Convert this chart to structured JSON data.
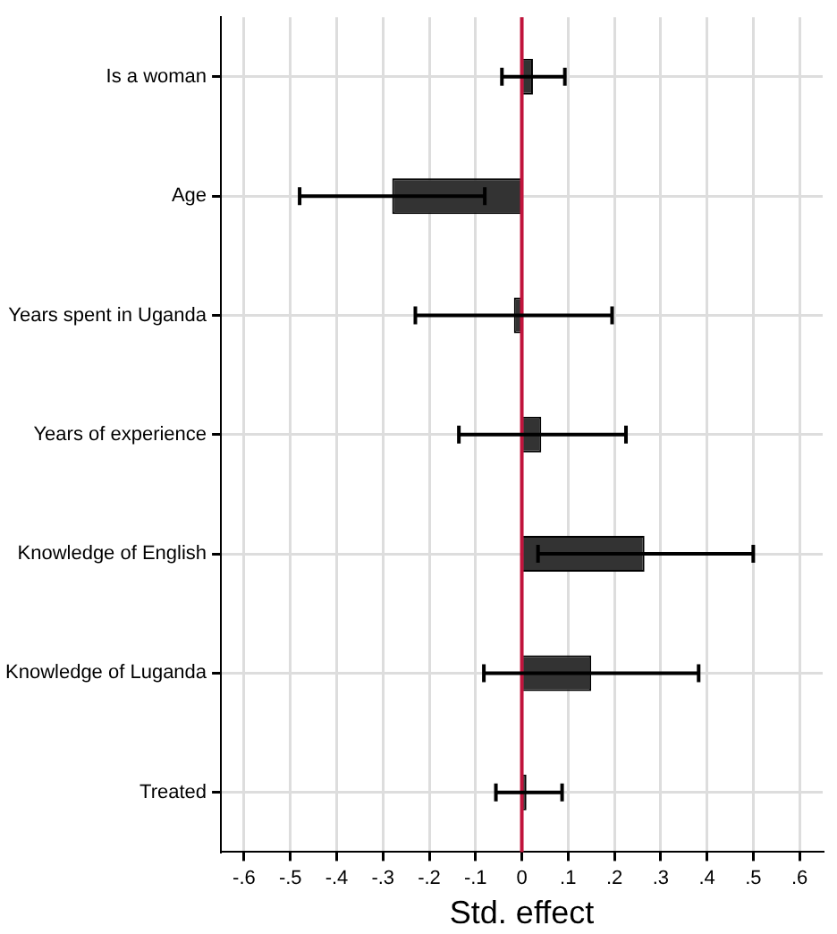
{
  "chart_data": {
    "type": "bar",
    "orientation": "horizontal",
    "xlabel": "Std. effect",
    "categories": [
      "Is a woman",
      "Age",
      "Years spent in Uganda",
      "Years of experience",
      "Knowledge of English",
      "Knowledge of Luganda",
      "Treated"
    ],
    "values": [
      0.024,
      -0.28,
      -0.017,
      0.042,
      0.265,
      0.15,
      0.01
    ],
    "errors": [
      [
        -0.043,
        0.093
      ],
      [
        -0.48,
        -0.08
      ],
      [
        -0.23,
        0.195
      ],
      [
        -0.136,
        0.225
      ],
      [
        0.035,
        0.5
      ],
      [
        -0.082,
        0.382
      ],
      [
        -0.056,
        0.087
      ]
    ],
    "color": "#333333",
    "xlim": [
      -0.65,
      0.65
    ],
    "xticks": [
      {
        "value": -0.6,
        "label": "-.6"
      },
      {
        "value": -0.5,
        "label": "-.5"
      },
      {
        "value": -0.4,
        "label": "-.4"
      },
      {
        "value": -0.3,
        "label": "-.3"
      },
      {
        "value": -0.2,
        "label": "-.2"
      },
      {
        "value": -0.1,
        "label": "-.1"
      },
      0,
      {
        "value": 0.1,
        "label": ".1"
      },
      {
        "value": 0.2,
        "label": ".2"
      },
      {
        "value": 0.3,
        "label": ".3"
      },
      {
        "value": 0.4,
        "label": ".4"
      },
      {
        "value": 0.5,
        "label": ".5"
      },
      {
        "value": 0.6,
        "label": ".6"
      }
    ],
    "ref_lines": [
      {
        "axis": "x",
        "value": 0,
        "color": "#c0143c"
      }
    ],
    "grid": true
  }
}
